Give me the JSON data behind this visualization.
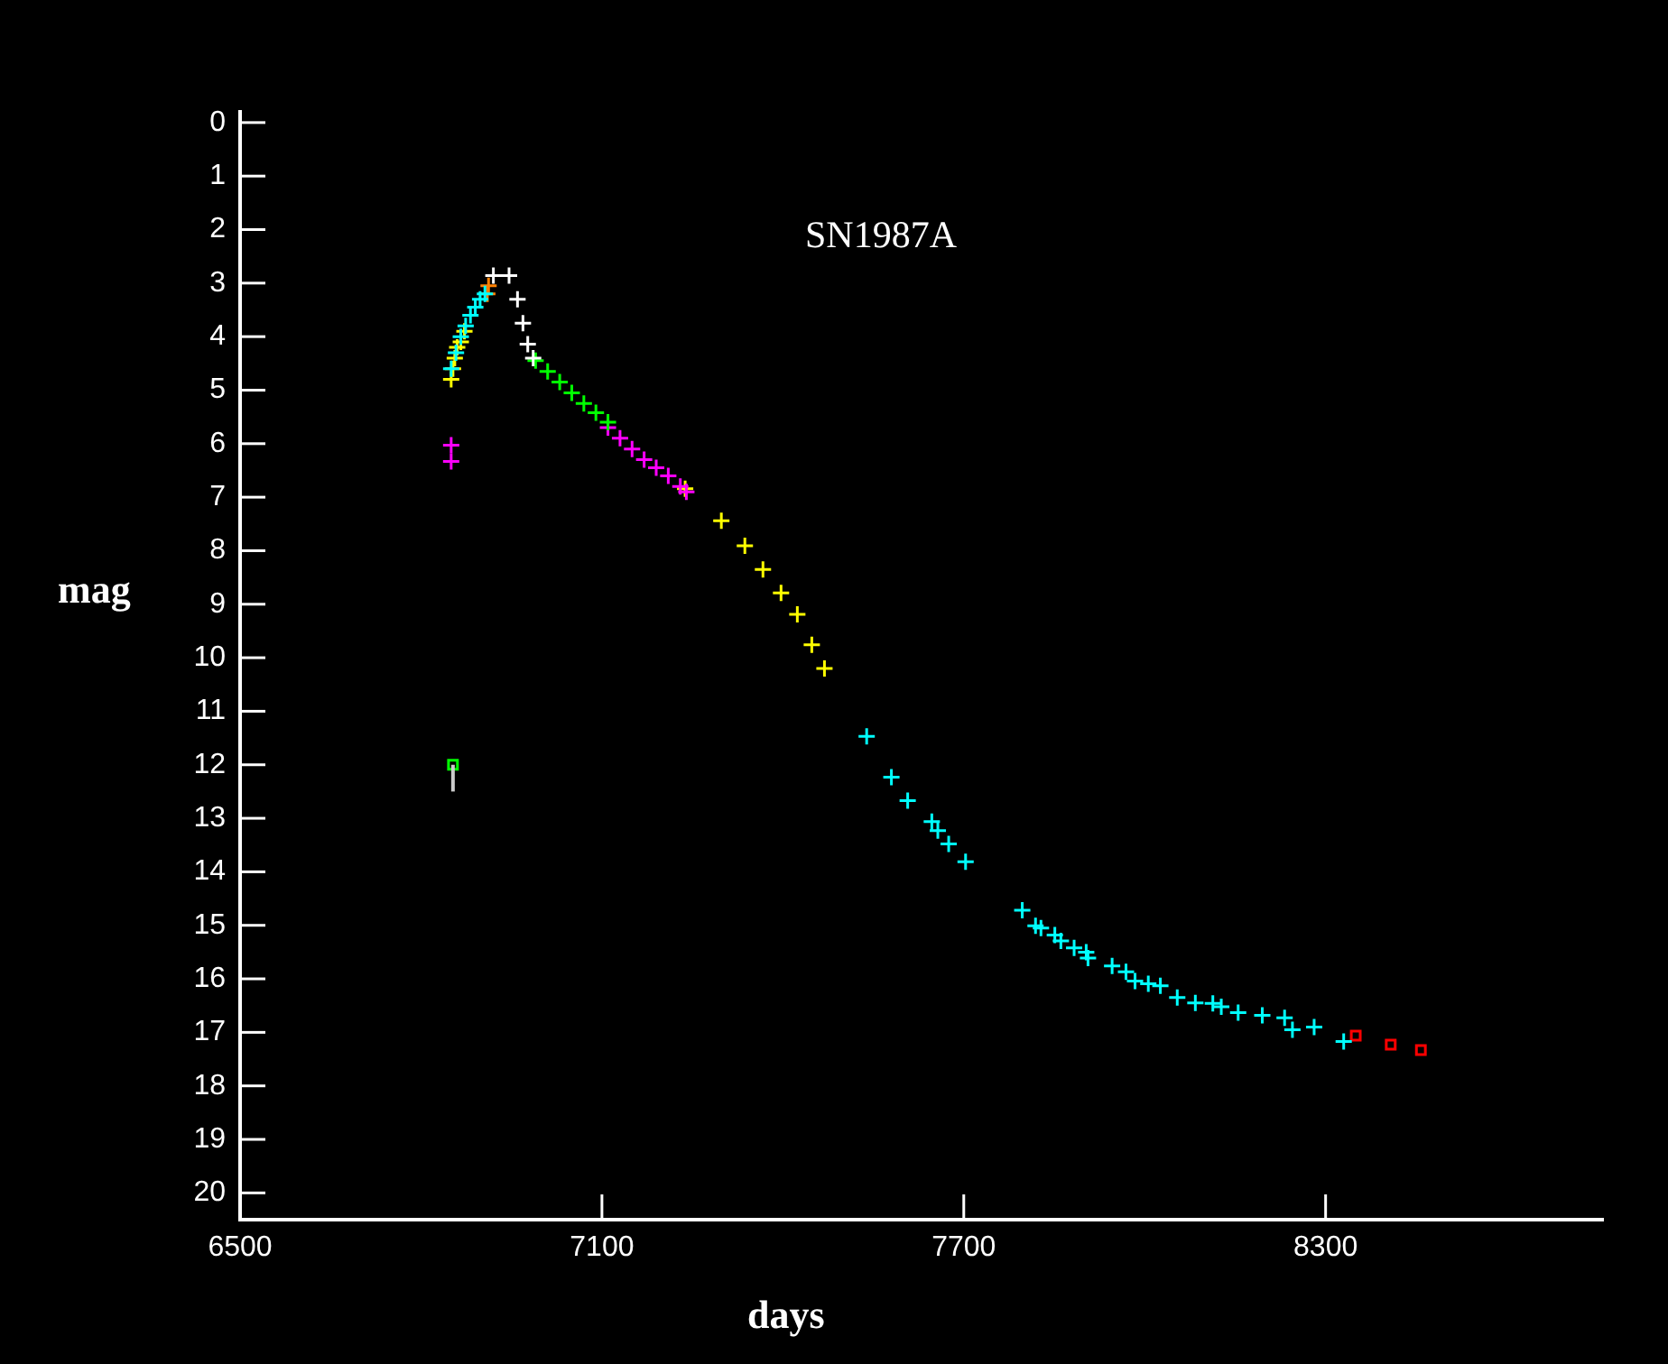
{
  "chart_data": {
    "type": "scatter",
    "title": "SN1987A",
    "xlabel": "days",
    "ylabel": "mag",
    "xlim": [
      6500,
      8760
    ],
    "xticks": [
      6500,
      7100,
      7700,
      8300
    ],
    "ylim": [
      20.5,
      -0.2
    ],
    "yticks": [
      0,
      1,
      2,
      3,
      4,
      5,
      6,
      7,
      8,
      9,
      10,
      11,
      12,
      13,
      14,
      15,
      16,
      17,
      18,
      19,
      20
    ],
    "grid": false,
    "legend": false,
    "marker": "cross",
    "series": [
      {
        "color": "#00ffff",
        "x": [
          6850,
          6858,
          6866,
          6874,
          6882,
          6890,
          6898,
          6906
        ],
        "values": [
          4.6,
          4.3,
          4.0,
          3.8,
          3.6,
          3.45,
          3.3,
          3.2
        ]
      },
      {
        "color": "#ffff00",
        "x": [
          6850,
          6853,
          6856,
          6860,
          6866,
          6872
        ],
        "values": [
          4.8,
          4.6,
          4.4,
          4.2,
          4.1,
          3.9
        ]
      },
      {
        "color": "#ff8000",
        "x": [
          6910,
          6912
        ],
        "values": [
          3.2,
          3.05
        ]
      },
      {
        "color": "#ffffff",
        "x": [
          6920,
          6946,
          6960,
          6969,
          6977,
          6986
        ],
        "values": [
          2.86,
          2.86,
          3.3,
          3.75,
          4.14,
          4.4
        ]
      },
      {
        "color": "#00ff00",
        "x": [
          6990,
          7010,
          7030,
          7050,
          7070,
          7090,
          7110
        ],
        "values": [
          4.45,
          4.65,
          4.85,
          5.05,
          5.25,
          5.42,
          5.6
        ]
      },
      {
        "color": "#ff00ff",
        "x": [
          7110,
          7130,
          7150,
          7170,
          7190,
          7210,
          7230,
          7240
        ],
        "values": [
          5.7,
          5.9,
          6.1,
          6.3,
          6.45,
          6.6,
          6.8,
          6.9
        ]
      },
      {
        "color": "#ffff00",
        "x": [
          7238,
          7298,
          7337,
          7367,
          7397,
          7424,
          7448,
          7469
        ],
        "values": [
          6.84,
          7.44,
          7.91,
          8.35,
          8.79,
          9.19,
          9.76,
          10.2
        ]
      },
      {
        "color": "#00ffff",
        "x": [
          7539,
          7580,
          7607,
          7647,
          7657,
          7675,
          7703,
          7797,
          7819,
          7828,
          7851,
          7861,
          7883,
          7903,
          7906,
          7946,
          7969,
          7984,
          8006,
          8026,
          8054,
          8084,
          8113,
          8127,
          8155,
          8195,
          8232,
          8245,
          8281,
          8330
        ],
        "values": [
          11.47,
          12.23,
          12.67,
          13.06,
          13.23,
          13.48,
          13.81,
          14.72,
          15.01,
          15.05,
          15.18,
          15.29,
          15.42,
          15.5,
          15.61,
          15.76,
          15.87,
          16.04,
          16.09,
          16.13,
          16.35,
          16.45,
          16.46,
          16.52,
          16.63,
          16.68,
          16.73,
          16.95,
          16.9,
          17.17
        ]
      },
      {
        "color": "#ff0000",
        "marker": "square",
        "x": [
          8350,
          8408,
          8458
        ],
        "values": [
          17.06,
          17.23,
          17.33
        ]
      },
      {
        "color": "#ff00ff",
        "x": [
          6850,
          6850
        ],
        "values": [
          6.03,
          6.33
        ]
      },
      {
        "color": "#00ff00",
        "marker": "square",
        "x": [
          6853
        ],
        "values": [
          12.0
        ],
        "errors": [
          [
            12.0,
            12.5
          ]
        ]
      }
    ]
  }
}
